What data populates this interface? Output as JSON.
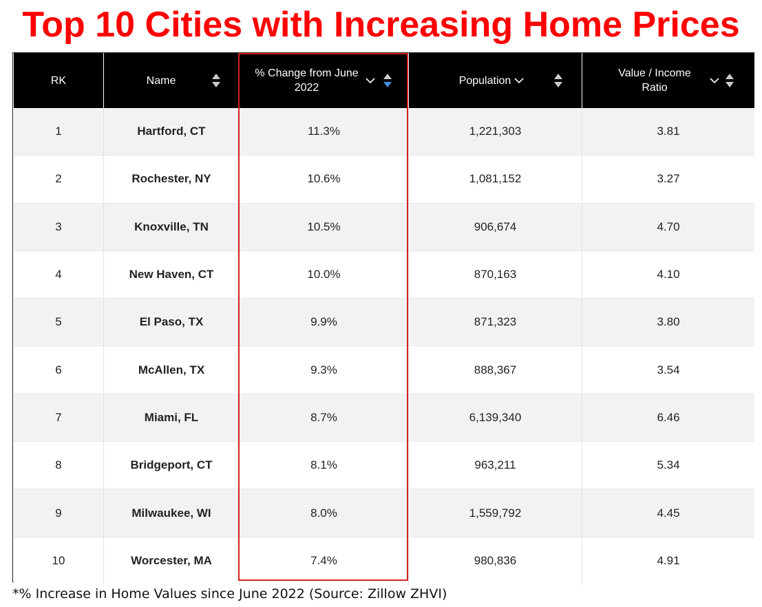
{
  "title": "Top 10 Cities with Increasing Home Prices",
  "table": {
    "columns": [
      "RK",
      "Name",
      "% Change from June 2022",
      "Population",
      "Value / Income Ratio"
    ],
    "sort_icons": {
      "name": "sort-up-down-icon",
      "pct_change": "sort-descending-active-icon",
      "population": "sort-up-down-icon",
      "ratio": "sort-up-down-icon"
    },
    "accent_color": "#4a90e2",
    "rows": [
      {
        "rk": "1",
        "name": "Hartford, CT",
        "pct": "11.3%",
        "population": "1,221,303",
        "ratio": "3.81"
      },
      {
        "rk": "2",
        "name": "Rochester, NY",
        "pct": "10.6%",
        "population": "1,081,152",
        "ratio": "3.27"
      },
      {
        "rk": "3",
        "name": "Knoxville, TN",
        "pct": "10.5%",
        "population": "906,674",
        "ratio": "4.70"
      },
      {
        "rk": "4",
        "name": "New Haven, CT",
        "pct": "10.0%",
        "population": "870,163",
        "ratio": "4.10"
      },
      {
        "rk": "5",
        "name": "El Paso, TX",
        "pct": "9.9%",
        "population": "871,323",
        "ratio": "3.80"
      },
      {
        "rk": "6",
        "name": "McAllen, TX",
        "pct": "9.3%",
        "population": "888,367",
        "ratio": "3.54"
      },
      {
        "rk": "7",
        "name": "Miami, FL",
        "pct": "8.7%",
        "population": "6,139,340",
        "ratio": "6.46"
      },
      {
        "rk": "8",
        "name": "Bridgeport, CT",
        "pct": "8.1%",
        "population": "963,211",
        "ratio": "5.34"
      },
      {
        "rk": "9",
        "name": "Milwaukee, WI",
        "pct": "8.0%",
        "population": "1,559,792",
        "ratio": "4.45"
      },
      {
        "rk": "10",
        "name": "Worcester, MA",
        "pct": "7.4%",
        "population": "980,836",
        "ratio": "4.91"
      }
    ]
  },
  "highlight_color": "#d32020",
  "title_color": "#ff0000",
  "footnote": "*% Increase in Home Values since June 2022 (Source: Zillow ZHVI)"
}
